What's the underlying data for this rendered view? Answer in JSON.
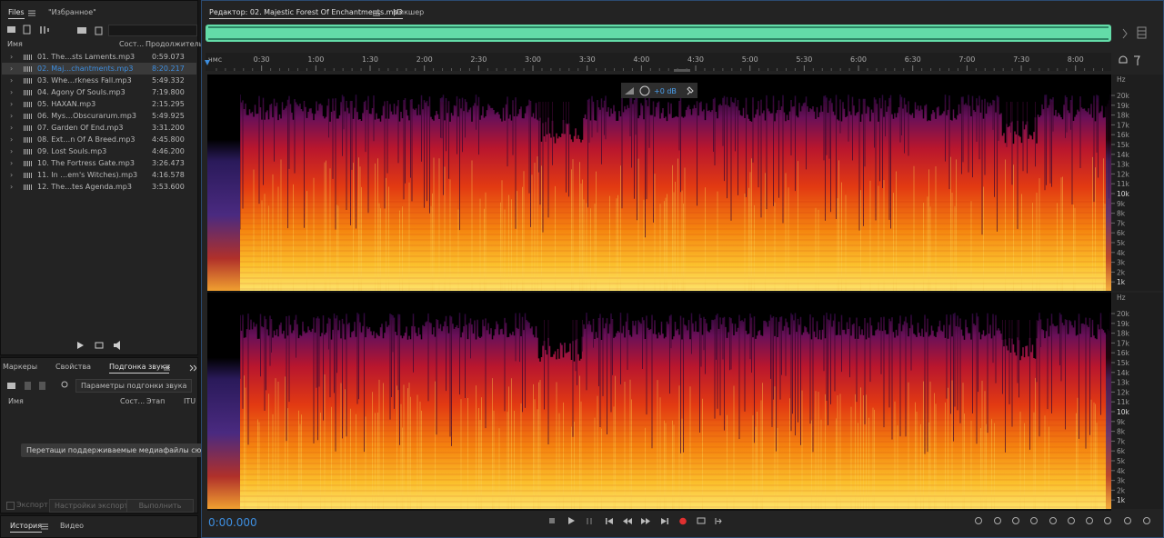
{
  "files_panel": {
    "tabs": [
      "Files",
      "\"Избранное\""
    ],
    "columns": [
      "Имя",
      "Сост...",
      "Продолжительн..."
    ],
    "files": [
      {
        "name": "01. The…sts Laments.mp3",
        "duration": "0:59.073"
      },
      {
        "name": "02. Maj…chantments.mp3",
        "duration": "8:20.217",
        "selected": true
      },
      {
        "name": "03. Whe…rkness Fall.mp3",
        "duration": "5:49.332"
      },
      {
        "name": "04. Agony Of Souls.mp3",
        "duration": "7:19.800"
      },
      {
        "name": "05. HAXAN.mp3",
        "duration": "2:15.295"
      },
      {
        "name": "06. Mys…Obscurarum.mp3",
        "duration": "5:49.925"
      },
      {
        "name": "07. Garden Of End.mp3",
        "duration": "3:31.200"
      },
      {
        "name": "08. Ext…n Of A Breed.mp3",
        "duration": "4:45.800"
      },
      {
        "name": "09. Lost Souls.mp3",
        "duration": "4:46.200"
      },
      {
        "name": "10. The Fortress Gate.mp3",
        "duration": "3:26.473"
      },
      {
        "name": "11. In …em's Witches).mp3",
        "duration": "4:16.578"
      },
      {
        "name": "12. The…tes Agenda.mp3",
        "duration": "3:53.600"
      }
    ]
  },
  "match_panel": {
    "tabs": [
      "Маркеры",
      "Свойства",
      "Подгонка звука"
    ],
    "settings_button": "Параметры подгонки звука",
    "columns": [
      "Имя",
      "Сост...",
      "Этап",
      "ITU"
    ],
    "drop_hint": "Перетащи поддерживаемые медиафайлы сюда",
    "export_checkbox": "Экспорт",
    "export_settings": "Настройки экспорта...",
    "run": "Выполнить"
  },
  "history_panel": {
    "tabs": [
      "История",
      "Видео"
    ]
  },
  "editor": {
    "tabs": [
      "Редактор: 02. Majestic Forest Of Enchantments.mp3",
      "Микшер"
    ],
    "ruler": [
      "чмс",
      "0:30",
      "1:00",
      "1:30",
      "2:00",
      "2:30",
      "3:00",
      "3:30",
      "4:00",
      "4:30",
      "5:00",
      "5:30",
      "6:00",
      "6:30",
      "7:00",
      "7:30",
      "8:00"
    ],
    "gain": "+0 dB",
    "freq_labels": [
      "Hz",
      "20k",
      "19k",
      "18k",
      "17k",
      "16k",
      "15k",
      "14k",
      "13k",
      "12k",
      "11k",
      "10k",
      "9k",
      "8k",
      "7k",
      "6k",
      "5k",
      "4k",
      "3k",
      "2k",
      "1k"
    ],
    "time": "0:00.000"
  }
}
